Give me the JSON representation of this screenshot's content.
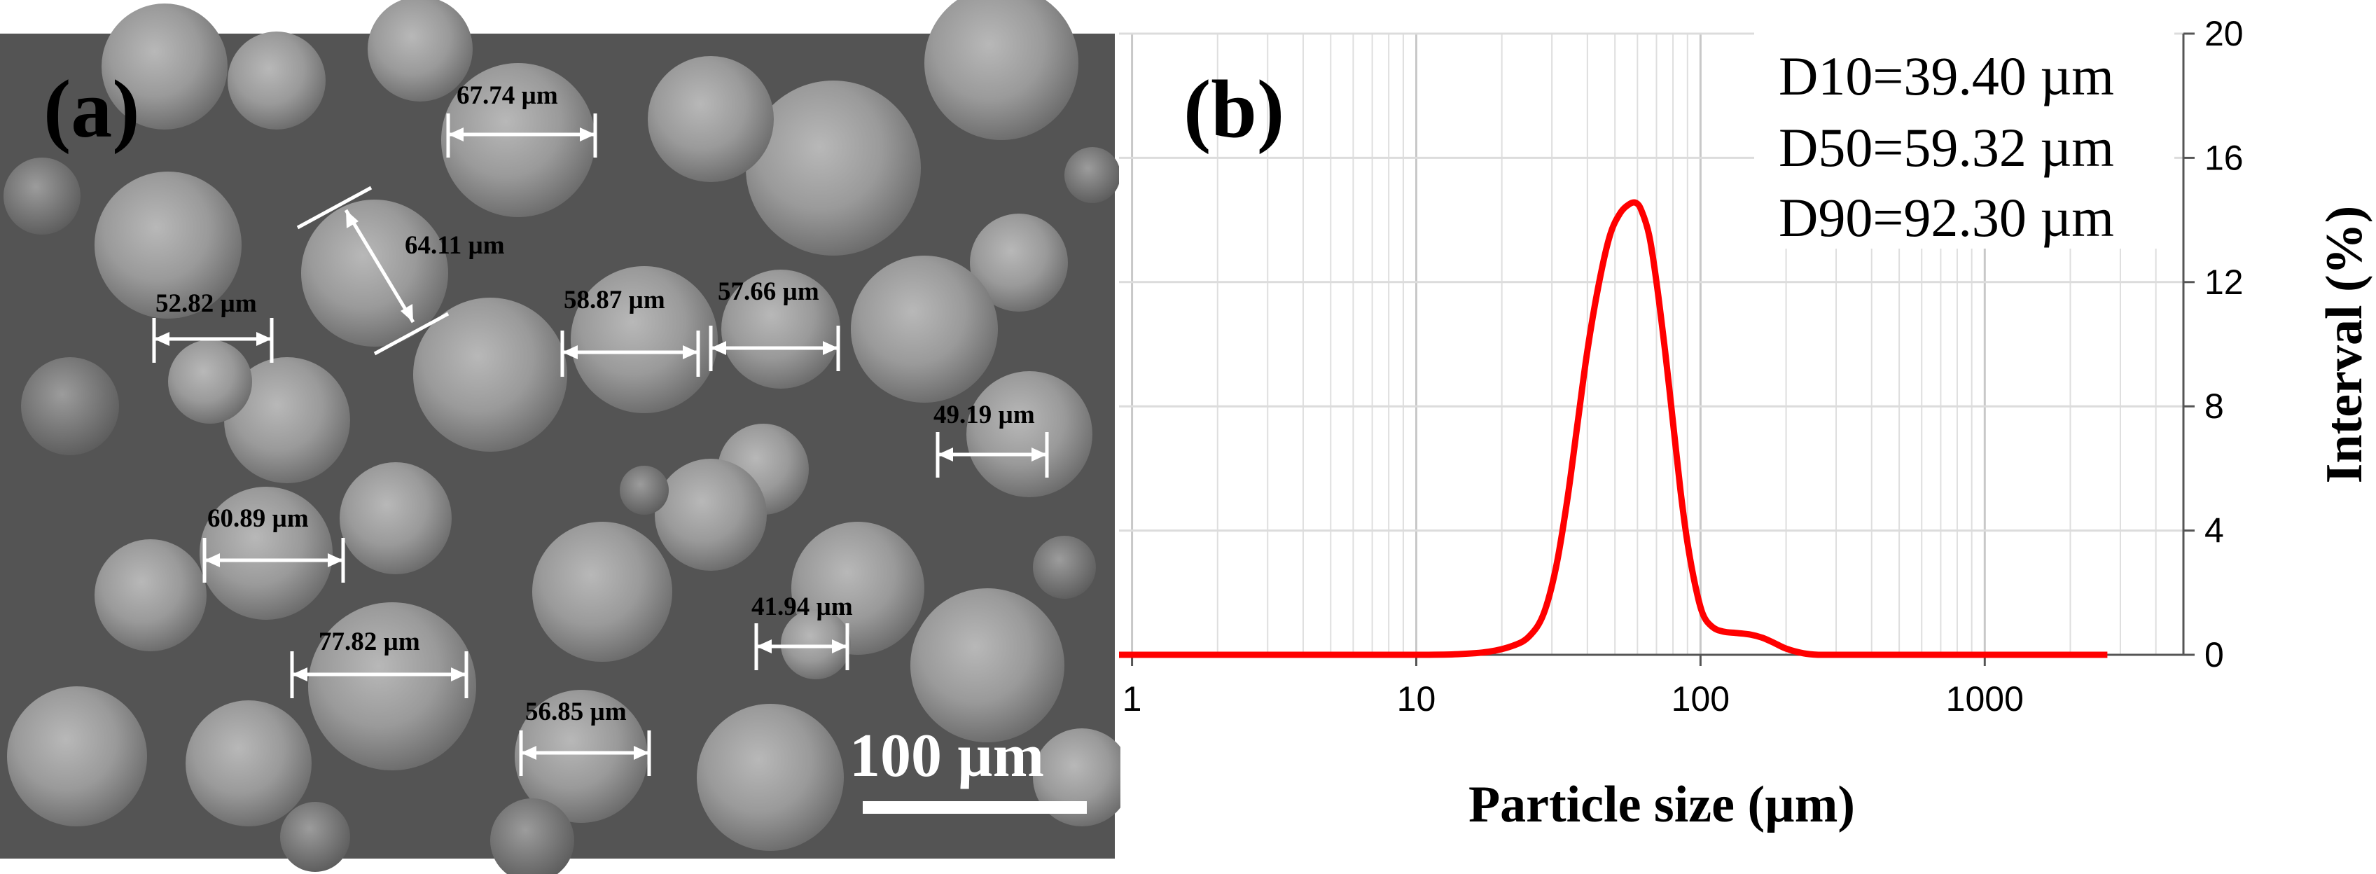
{
  "panel_a": {
    "label": "(a)",
    "scale_bar_label": "100 µm",
    "measurements": [
      {
        "label": "67.74 µm",
        "value": 67.74
      },
      {
        "label": "64.11 µm",
        "value": 64.11
      },
      {
        "label": "52.82 µm",
        "value": 52.82
      },
      {
        "label": "58.87 µm",
        "value": 58.87
      },
      {
        "label": "57.66 µm",
        "value": 57.66
      },
      {
        "label": "49.19 µm",
        "value": 49.19
      },
      {
        "label": "60.89 µm",
        "value": 60.89
      },
      {
        "label": "77.82 µm",
        "value": 77.82
      },
      {
        "label": "41.94 µm",
        "value": 41.94
      },
      {
        "label": "56.85 µm",
        "value": 56.85
      }
    ]
  },
  "panel_b": {
    "label": "(b)",
    "stats": [
      "D10=39.40 µm",
      "D50=59.32 µm",
      "D90=92.30 µm"
    ]
  },
  "chart_data": {
    "type": "line",
    "title": "",
    "xlabel": "Particle size (µm)",
    "ylabel": "Interval (%)",
    "xscale": "log",
    "xlim": [
      0.9,
      5000
    ],
    "ylim": [
      0,
      20
    ],
    "x_ticks": [
      1,
      10,
      100,
      1000
    ],
    "x_tick_labels": [
      "1",
      "10",
      "100",
      "1000"
    ],
    "y_ticks": [
      0,
      4,
      8,
      12,
      16,
      20
    ],
    "y_tick_labels": [
      "0",
      "4",
      "8",
      "12",
      "16",
      "20"
    ],
    "y_axis_side": "right",
    "grid": true,
    "series": [
      {
        "name": "Interval",
        "color": "#ff0000",
        "x": [
          0.9,
          5,
          10,
          14,
          18,
          22,
          25,
          28,
          31,
          34,
          37,
          40,
          44,
          48,
          52,
          56,
          59.3,
          62,
          66,
          70,
          75,
          80,
          85,
          90,
          96,
          102,
          110,
          120,
          135,
          150,
          165,
          180,
          200,
          230,
          260,
          300,
          500,
          1000,
          2700
        ],
        "y": [
          0,
          0,
          0,
          0.02,
          0.1,
          0.3,
          0.6,
          1.3,
          2.8,
          5.0,
          7.5,
          9.8,
          12.0,
          13.5,
          14.2,
          14.5,
          14.55,
          14.3,
          13.5,
          12.0,
          9.8,
          7.5,
          5.3,
          3.6,
          2.2,
          1.3,
          0.9,
          0.75,
          0.7,
          0.65,
          0.55,
          0.4,
          0.2,
          0.05,
          0,
          0,
          0,
          0,
          0
        ]
      }
    ]
  }
}
